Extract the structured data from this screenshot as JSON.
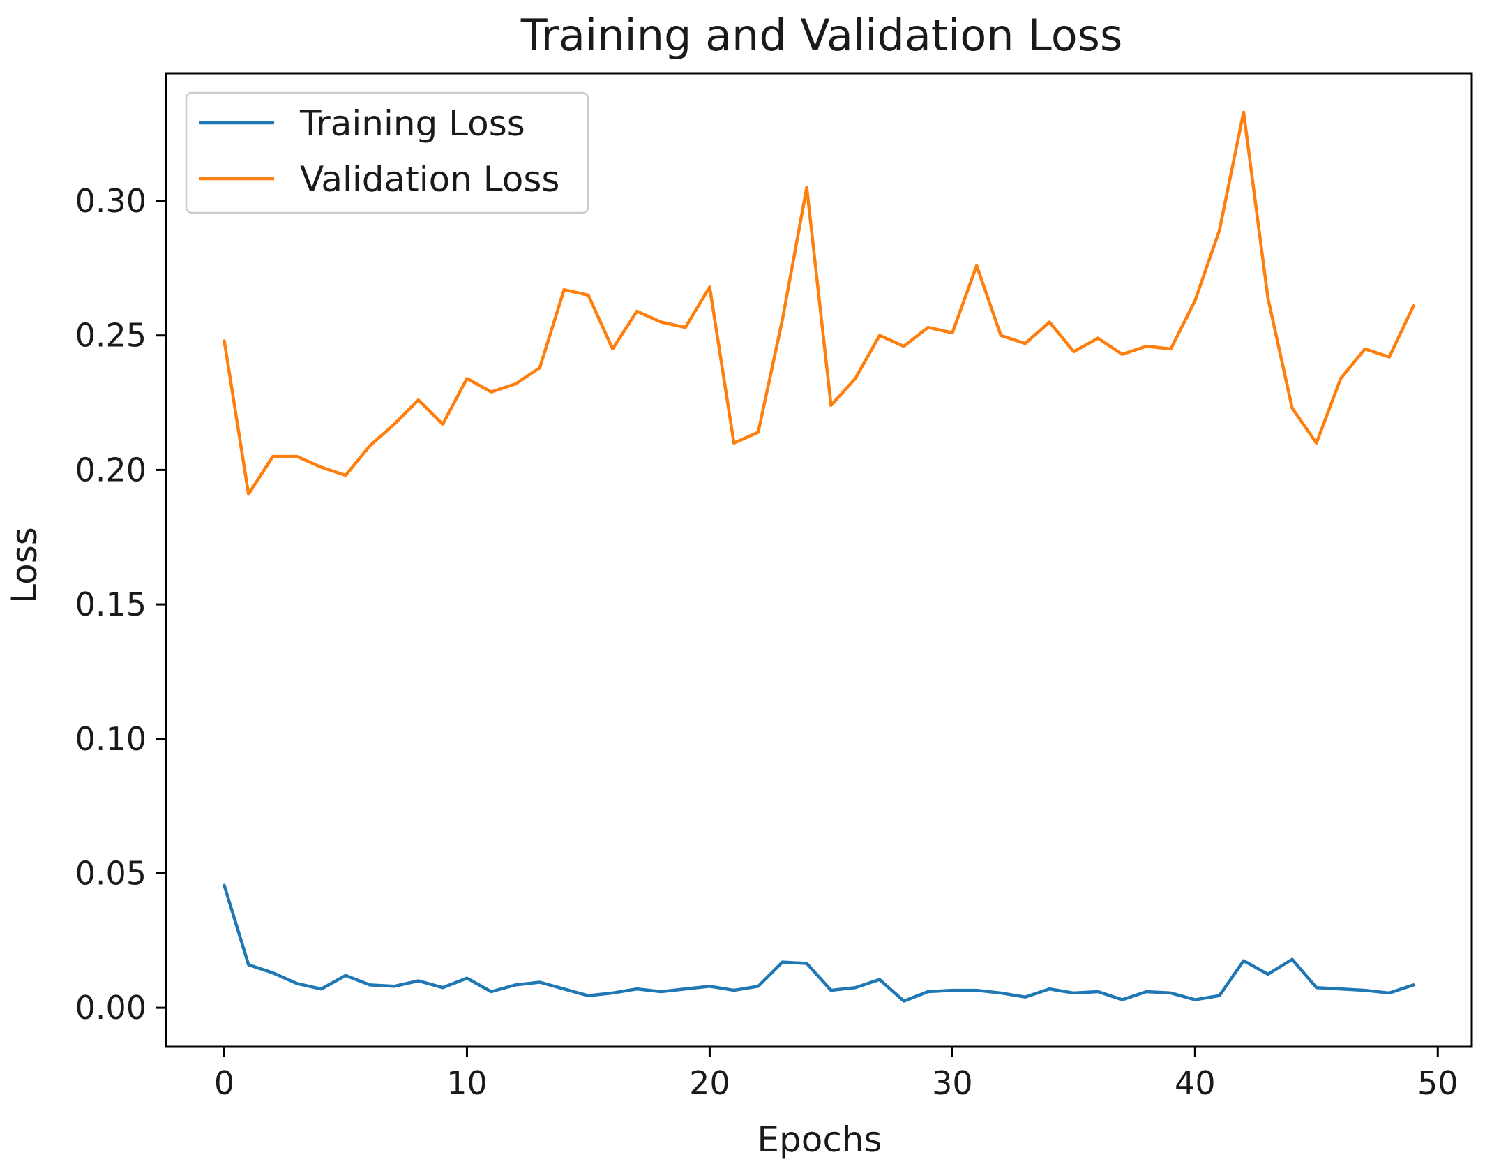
{
  "chart_data": {
    "type": "line",
    "title": "Training and Validation Loss",
    "xlabel": "Epochs",
    "ylabel": "Loss",
    "xlim": [
      -2.4,
      51.4
    ],
    "ylim": [
      -0.0145,
      0.3475
    ],
    "xticks": [
      0,
      10,
      20,
      30,
      40,
      50
    ],
    "xtick_labels": [
      "0",
      "10",
      "20",
      "30",
      "40",
      "50"
    ],
    "yticks": [
      0.0,
      0.05,
      0.1,
      0.15,
      0.2,
      0.25,
      0.3
    ],
    "ytick_labels": [
      "0.00",
      "0.05",
      "0.10",
      "0.15",
      "0.20",
      "0.25",
      "0.30"
    ],
    "grid": false,
    "legend_position": "upper-left",
    "x": [
      0,
      1,
      2,
      3,
      4,
      5,
      6,
      7,
      8,
      9,
      10,
      11,
      12,
      13,
      14,
      15,
      16,
      17,
      18,
      19,
      20,
      21,
      22,
      23,
      24,
      25,
      26,
      27,
      28,
      29,
      30,
      31,
      32,
      33,
      34,
      35,
      36,
      37,
      38,
      39,
      40,
      41,
      42,
      43,
      44,
      45,
      46,
      47,
      48,
      49
    ],
    "series": [
      {
        "name": "Training Loss",
        "color": "#1f77b4",
        "values": [
          0.0455,
          0.016,
          0.013,
          0.009,
          0.007,
          0.012,
          0.0085,
          0.008,
          0.01,
          0.0075,
          0.011,
          0.006,
          0.0085,
          0.0095,
          0.007,
          0.0045,
          0.0055,
          0.007,
          0.006,
          0.007,
          0.008,
          0.0065,
          0.008,
          0.017,
          0.0165,
          0.0065,
          0.0075,
          0.0105,
          0.0025,
          0.006,
          0.0065,
          0.0065,
          0.0055,
          0.004,
          0.007,
          0.0055,
          0.006,
          0.003,
          0.006,
          0.0055,
          0.003,
          0.0045,
          0.0175,
          0.0125,
          0.018,
          0.0075,
          0.007,
          0.0065,
          0.0055,
          0.0085
        ]
      },
      {
        "name": "Validation Loss",
        "color": "#ff7f0e",
        "values": [
          0.248,
          0.191,
          0.205,
          0.205,
          0.201,
          0.198,
          0.209,
          0.217,
          0.226,
          0.217,
          0.234,
          0.229,
          0.232,
          0.238,
          0.267,
          0.265,
          0.245,
          0.259,
          0.255,
          0.253,
          0.268,
          0.21,
          0.214,
          0.256,
          0.305,
          0.224,
          0.234,
          0.25,
          0.246,
          0.253,
          0.251,
          0.276,
          0.25,
          0.247,
          0.255,
          0.244,
          0.249,
          0.243,
          0.246,
          0.245,
          0.263,
          0.289,
          0.333,
          0.264,
          0.223,
          0.21,
          0.234,
          0.245,
          0.242,
          0.261
        ]
      }
    ]
  }
}
